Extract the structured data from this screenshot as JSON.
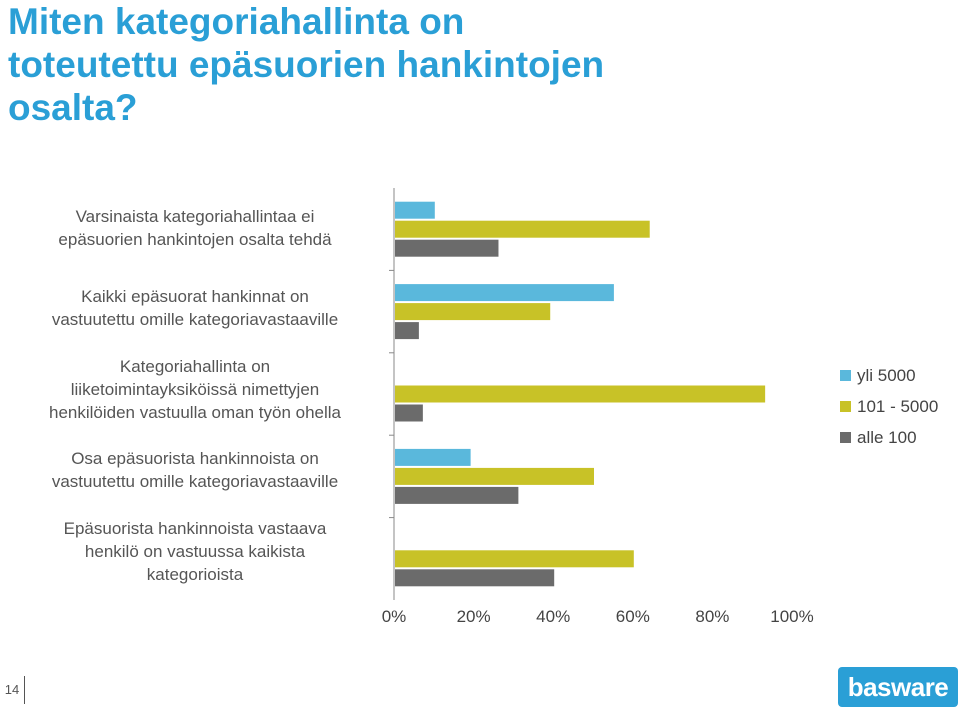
{
  "slide": {
    "title_lines": [
      "Miten kategoriahallinta on",
      "toteutettu epäsuorien hankintojen",
      "osalta?"
    ],
    "page_number": "14",
    "logo_text": "basware"
  },
  "colors": {
    "title": "#2a9fd6",
    "series": [
      "#5ab8dc",
      "#c8c227",
      "#6b6b6b"
    ],
    "logo_bg": "#2a9fd6"
  },
  "chart_data": {
    "type": "bar",
    "orientation": "horizontal",
    "categories": [
      [
        "Varsinaista kategoriahallintaa ei",
        "epäsuorien hankintojen osalta tehdä"
      ],
      [
        "Kaikki epäsuorat hankinnat on",
        "vastuutettu omille kategoriavastaaville"
      ],
      [
        "Kategoriahallinta on",
        "liiketoimintayksiköissä nimettyjen",
        "henkilöiden vastuulla oman työn ohella"
      ],
      [
        "Osa epäsuorista hankinnoista on",
        "vastuutettu omille kategoriavastaaville"
      ],
      [
        "Epäsuorista hankinnoista vastaava",
        "henkilö on vastuussa kaikista",
        "kategorioista"
      ]
    ],
    "series": [
      {
        "name": "yli 5000",
        "values": [
          10,
          55,
          0,
          19,
          0
        ]
      },
      {
        "name": "101 - 5000",
        "values": [
          64,
          39,
          93,
          50,
          60
        ]
      },
      {
        "name": "alle 100",
        "values": [
          26,
          6,
          7,
          31,
          40
        ]
      }
    ],
    "xlim": [
      0,
      100
    ],
    "x_ticks": [
      "0%",
      "20%",
      "40%",
      "60%",
      "80%",
      "100%"
    ],
    "grid": false,
    "legend_position": "right"
  }
}
